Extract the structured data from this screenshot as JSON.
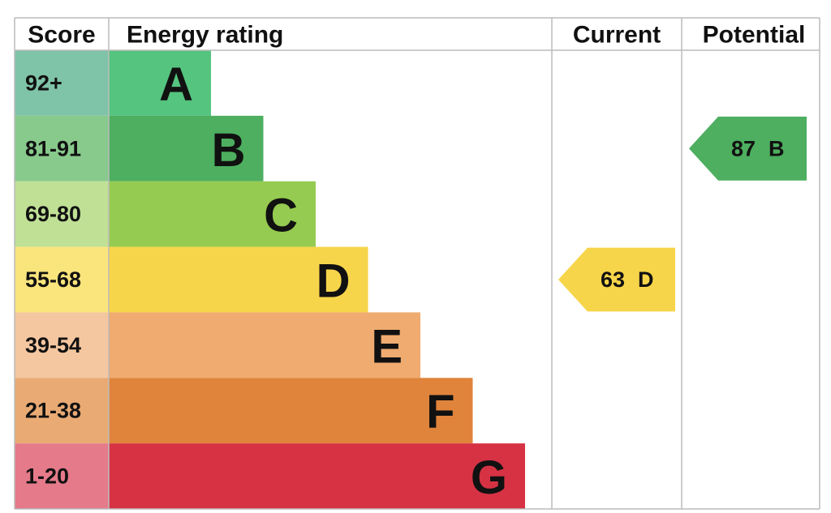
{
  "chart_data": {
    "type": "epc",
    "headers": {
      "score": "Score",
      "rating": "Energy rating",
      "current": "Current",
      "potential": "Potential"
    },
    "bands": [
      {
        "score": "92+",
        "letter": "A",
        "color": "#55c47f",
        "score_color": "#7fc4a8"
      },
      {
        "score": "81-91",
        "letter": "B",
        "color": "#4daf5f",
        "score_color": "#88c98c"
      },
      {
        "score": "69-80",
        "letter": "C",
        "color": "#95cb50",
        "score_color": "#c0e096"
      },
      {
        "score": "55-68",
        "letter": "D",
        "color": "#f7d54a",
        "score_color": "#fae47c"
      },
      {
        "score": "39-54",
        "letter": "E",
        "color": "#efab70",
        "score_color": "#f5c7a0"
      },
      {
        "score": "21-38",
        "letter": "F",
        "color": "#e0843b",
        "score_color": "#e9aa74"
      },
      {
        "score": "1-20",
        "letter": "G",
        "color": "#d63244",
        "score_color": "#e57a8a"
      }
    ],
    "current": {
      "value": 63,
      "letter": "D"
    },
    "potential": {
      "value": 87,
      "letter": "B"
    }
  }
}
